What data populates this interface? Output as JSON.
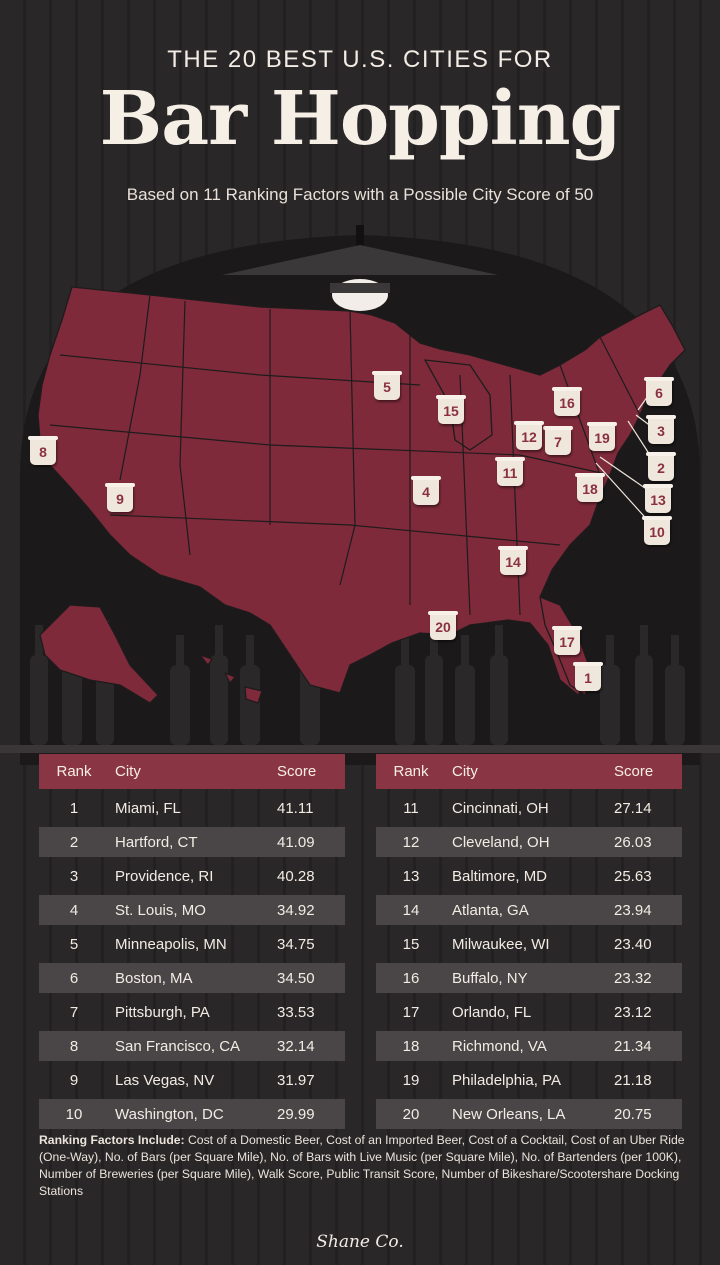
{
  "header": {
    "kicker": "THE 20 BEST U.S. CITIES FOR",
    "title": "Bar Hopping",
    "subtitle": "Based on 11 Ranking Factors with a Possible City Score of 50"
  },
  "map": {
    "markers": [
      {
        "rank": "1"
      },
      {
        "rank": "2"
      },
      {
        "rank": "3"
      },
      {
        "rank": "4"
      },
      {
        "rank": "5"
      },
      {
        "rank": "6"
      },
      {
        "rank": "7"
      },
      {
        "rank": "8"
      },
      {
        "rank": "9"
      },
      {
        "rank": "10"
      },
      {
        "rank": "11"
      },
      {
        "rank": "12"
      },
      {
        "rank": "13"
      },
      {
        "rank": "14"
      },
      {
        "rank": "15"
      },
      {
        "rank": "16"
      },
      {
        "rank": "17"
      },
      {
        "rank": "18"
      },
      {
        "rank": "19"
      },
      {
        "rank": "20"
      }
    ]
  },
  "table": {
    "headers": {
      "rank": "Rank",
      "city": "City",
      "score": "Score"
    },
    "rows": [
      {
        "rank": "1",
        "city": "Miami, FL",
        "score": "41.11"
      },
      {
        "rank": "2",
        "city": "Hartford, CT",
        "score": "41.09"
      },
      {
        "rank": "3",
        "city": "Providence, RI",
        "score": "40.28"
      },
      {
        "rank": "4",
        "city": "St. Louis, MO",
        "score": "34.92"
      },
      {
        "rank": "5",
        "city": "Minneapolis, MN",
        "score": "34.75"
      },
      {
        "rank": "6",
        "city": "Boston, MA",
        "score": "34.50"
      },
      {
        "rank": "7",
        "city": "Pittsburgh, PA",
        "score": "33.53"
      },
      {
        "rank": "8",
        "city": "San Francisco, CA",
        "score": "32.14"
      },
      {
        "rank": "9",
        "city": "Las Vegas, NV",
        "score": "31.97"
      },
      {
        "rank": "10",
        "city": "Washington, DC",
        "score": "29.99"
      },
      {
        "rank": "11",
        "city": "Cincinnati, OH",
        "score": "27.14"
      },
      {
        "rank": "12",
        "city": "Cleveland, OH",
        "score": "26.03"
      },
      {
        "rank": "13",
        "city": "Baltimore, MD",
        "score": "25.63"
      },
      {
        "rank": "14",
        "city": "Atlanta, GA",
        "score": "23.94"
      },
      {
        "rank": "15",
        "city": "Milwaukee, WI",
        "score": "23.40"
      },
      {
        "rank": "16",
        "city": "Buffalo, NY",
        "score": "23.32"
      },
      {
        "rank": "17",
        "city": "Orlando, FL",
        "score": "23.12"
      },
      {
        "rank": "18",
        "city": "Richmond, VA",
        "score": "21.34"
      },
      {
        "rank": "19",
        "city": "Philadelphia, PA",
        "score": "21.18"
      },
      {
        "rank": "20",
        "city": "New Orleans, LA",
        "score": "20.75"
      }
    ]
  },
  "footer": {
    "factors_label": "Ranking Factors Include:",
    "factors_text": " Cost of a Domestic Beer, Cost of an Imported Beer, Cost of a Cocktail, Cost of an Uber Ride (One-Way), No. of Bars (per Square Mile), No. of Bars with Live Music (per Square Mile), No. of Bartenders (per 100K), Number of Breweries (per Square Mile), Walk Score, Public Transit Score, Number of Bikeshare/Scootershare Docking Stations",
    "logo": "Shane Co."
  },
  "colors": {
    "background": "#262325",
    "map_fill": "#7e2a3a",
    "table_header": "#8a3543",
    "row_alt": "#4a4647",
    "marker": "#efe6dc",
    "text": "#f3ece4"
  }
}
